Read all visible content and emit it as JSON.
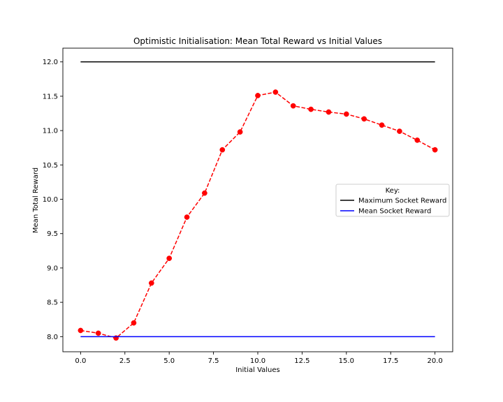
{
  "chart_data": {
    "type": "line",
    "title": "Optimistic Initialisation: Mean Total Reward vs Initial Values",
    "xlabel": "Initial Values",
    "ylabel": "Mean Total Reward",
    "xlim": [
      -1.0,
      21.0
    ],
    "ylim": [
      7.78,
      12.2
    ],
    "xticks": [
      0.0,
      2.5,
      5.0,
      7.5,
      10.0,
      12.5,
      15.0,
      17.5,
      20.0
    ],
    "xtick_labels": [
      "0.0",
      "2.5",
      "5.0",
      "7.5",
      "10.0",
      "12.5",
      "15.0",
      "17.5",
      "20.0"
    ],
    "yticks": [
      8.0,
      8.5,
      9.0,
      9.5,
      10.0,
      10.5,
      11.0,
      11.5,
      12.0
    ],
    "ytick_labels": [
      "8.0",
      "8.5",
      "9.0",
      "9.5",
      "10.0",
      "10.5",
      "11.0",
      "11.5",
      "12.0"
    ],
    "grid": false,
    "legend": {
      "title": "Key:",
      "placement": "center-right",
      "entries": [
        "Maximum Socket Reward",
        "Mean Socket Reward"
      ]
    },
    "series": [
      {
        "style": "dashed-markers",
        "color": "#ff0000",
        "x": [
          0,
          1,
          2,
          3,
          4,
          5,
          6,
          7,
          8,
          9,
          10,
          11,
          12,
          13,
          14,
          15,
          16,
          17,
          18,
          19,
          20
        ],
        "y": [
          8.09,
          8.05,
          7.98,
          8.2,
          8.78,
          9.14,
          9.74,
          10.09,
          10.72,
          10.98,
          11.51,
          11.56,
          11.36,
          11.31,
          11.27,
          11.24,
          11.17,
          11.08,
          10.99,
          10.86,
          10.72
        ]
      },
      {
        "name": "Maximum Socket Reward",
        "style": "solid",
        "color": "#000000",
        "x": [
          0,
          20
        ],
        "y": [
          12.0,
          12.0
        ]
      },
      {
        "name": "Mean Socket Reward",
        "style": "solid",
        "color": "#0000ff",
        "x": [
          0,
          20
        ],
        "y": [
          8.0,
          8.0
        ]
      }
    ]
  }
}
